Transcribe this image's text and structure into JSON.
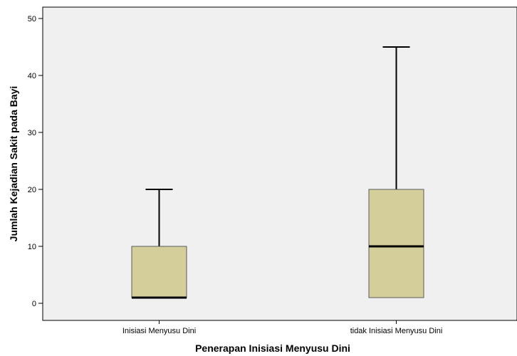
{
  "chart_data": {
    "type": "boxplot",
    "title": "",
    "xlabel": "Penerapan Inisiasi Menyusu Dini",
    "ylabel": "Jumlah Kejadian Sakit pada Bayi",
    "ylim": [
      -3,
      52
    ],
    "yticks": [
      0,
      10,
      20,
      30,
      40,
      50
    ],
    "ytick_labels": [
      "0",
      "10",
      "20",
      "30",
      "40",
      "50"
    ],
    "categories": [
      "Inisiasi Menyusu Dini",
      "tidak Inisiasi Menyusu Dini"
    ],
    "boxes": [
      {
        "category": "Inisiasi Menyusu Dini",
        "min": 1,
        "q1": 1,
        "median": 1,
        "q3": 10,
        "max": 20
      },
      {
        "category": "tidak Inisiasi Menyusu Dini",
        "min": 1,
        "q1": 1,
        "median": 10,
        "q3": 20,
        "max": 45
      }
    ],
    "grid": false,
    "legend": "none",
    "colors": {
      "plot_background": "#f0f0f0",
      "box_fill": "#d3ce9a",
      "box_stroke": "#5a5a5a",
      "median": "#000000",
      "whisker": "#000000",
      "axis": "#000000"
    }
  }
}
